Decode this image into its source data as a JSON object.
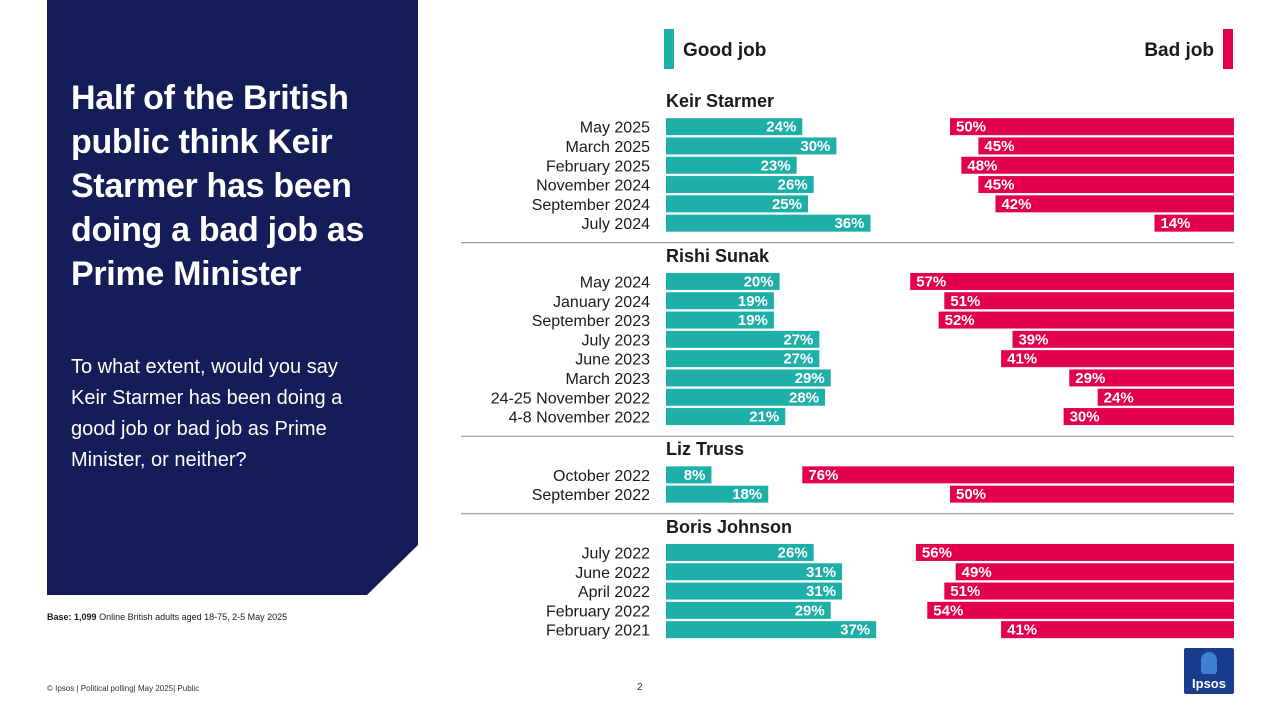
{
  "headline": "Half of the British public think Keir Starmer has been doing a bad job as Prime Minister",
  "question": "To what extent, would you say Keir Starmer has been doing a good job or bad job as Prime Minister, or neither?",
  "base_label": "Base:",
  "base_value": "1,099",
  "base_text": "Online British adults aged 18-75, 2-5 May 2025",
  "footer": "© Ipsos | Political polling| May 2025| Public",
  "page_number": "2",
  "logo_text": "Ipsos",
  "legend": {
    "good": "Good job",
    "bad": "Bad job"
  },
  "colors": {
    "good": "#1fafa9",
    "bad": "#e3004f",
    "panel": "#141d57"
  },
  "chart_data": {
    "type": "bar",
    "orientation": "horizontal",
    "value_suffix": "%",
    "groups": [
      {
        "name": "Keir Starmer",
        "rows": [
          {
            "label": "May 2025",
            "good": 24,
            "bad": 50
          },
          {
            "label": "March 2025",
            "good": 30,
            "bad": 45
          },
          {
            "label": "February 2025",
            "good": 23,
            "bad": 48
          },
          {
            "label": "November 2024",
            "good": 26,
            "bad": 45
          },
          {
            "label": "September 2024",
            "good": 25,
            "bad": 42
          },
          {
            "label": "July 2024",
            "good": 36,
            "bad": 14
          }
        ]
      },
      {
        "name": "Rishi Sunak",
        "rows": [
          {
            "label": "May 2024",
            "good": 20,
            "bad": 57
          },
          {
            "label": "January 2024",
            "good": 19,
            "bad": 51
          },
          {
            "label": "September 2023",
            "good": 19,
            "bad": 52
          },
          {
            "label": "July 2023",
            "good": 27,
            "bad": 39
          },
          {
            "label": "June 2023",
            "good": 27,
            "bad": 41
          },
          {
            "label": "March 2023",
            "good": 29,
            "bad": 29
          },
          {
            "label": "24-25 November 2022",
            "good": 28,
            "bad": 24
          },
          {
            "label": "4-8 November 2022",
            "good": 21,
            "bad": 30
          }
        ]
      },
      {
        "name": "Liz Truss",
        "rows": [
          {
            "label": "October 2022",
            "good": 8,
            "bad": 76
          },
          {
            "label": "September 2022",
            "good": 18,
            "bad": 50
          }
        ]
      },
      {
        "name": "Boris Johnson",
        "rows": [
          {
            "label": "July 2022",
            "good": 26,
            "bad": 56
          },
          {
            "label": "June 2022",
            "good": 31,
            "bad": 49
          },
          {
            "label": "April 2022",
            "good": 31,
            "bad": 51
          },
          {
            "label": "February 2022",
            "good": 29,
            "bad": 54
          },
          {
            "label": "February 2021",
            "good": 37,
            "bad": 41
          }
        ]
      }
    ]
  }
}
